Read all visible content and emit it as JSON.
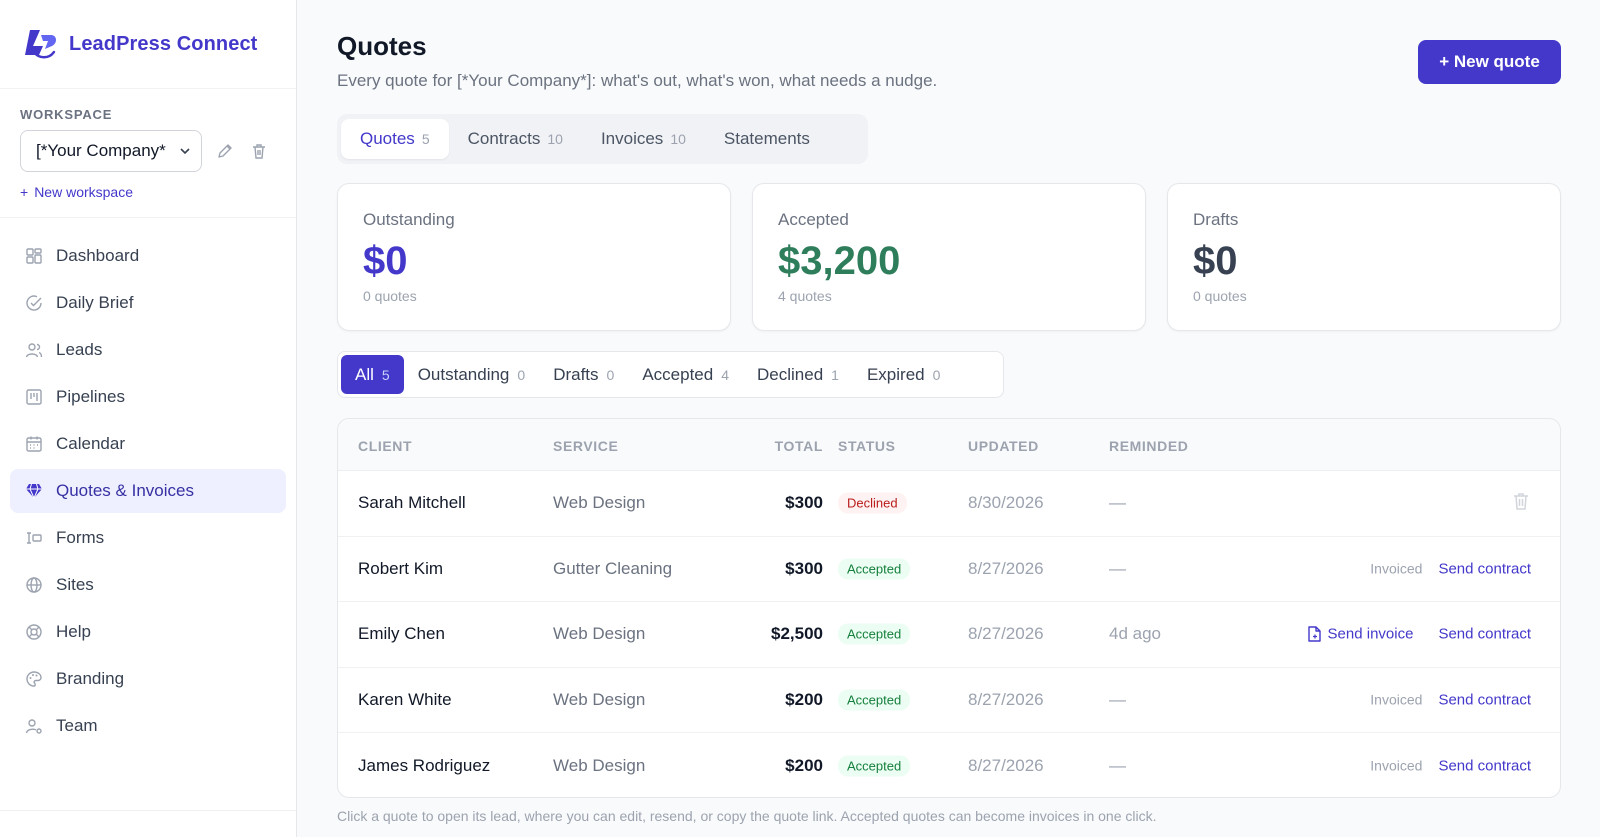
{
  "brand": {
    "name": "LeadPress Connect",
    "logo_icon": "leadpress-logo-icon"
  },
  "workspace": {
    "label": "WORKSPACE",
    "selected": "[*Your Company*",
    "new_label": "New workspace"
  },
  "nav": {
    "items": [
      {
        "label": "Dashboard",
        "icon": "grid-icon"
      },
      {
        "label": "Daily Brief",
        "icon": "check-circle-icon"
      },
      {
        "label": "Leads",
        "icon": "users-icon"
      },
      {
        "label": "Pipelines",
        "icon": "kanban-icon"
      },
      {
        "label": "Calendar",
        "icon": "calendar-icon"
      },
      {
        "label": "Quotes & Invoices",
        "icon": "gem-icon",
        "active": true
      },
      {
        "label": "Forms",
        "icon": "form-icon"
      },
      {
        "label": "Sites",
        "icon": "globe-icon"
      },
      {
        "label": "Help",
        "icon": "lifebuoy-icon"
      },
      {
        "label": "Branding",
        "icon": "palette-icon"
      },
      {
        "label": "Team",
        "icon": "user-gear-icon"
      }
    ]
  },
  "header": {
    "title": "Quotes",
    "subtitle": "Every quote for [*Your Company*]: what's out, what's won, what needs a nudge.",
    "new_button": "+ New quote"
  },
  "tabs": [
    {
      "label": "Quotes",
      "count": "5",
      "active": true
    },
    {
      "label": "Contracts",
      "count": "10"
    },
    {
      "label": "Invoices",
      "count": "10"
    },
    {
      "label": "Statements",
      "count": ""
    }
  ],
  "summary": [
    {
      "label": "Outstanding",
      "value": "$0",
      "sub": "0 quotes",
      "color": "#4338ca"
    },
    {
      "label": "Accepted",
      "value": "$3,200",
      "sub": "4 quotes",
      "color": "#2e7d5b"
    },
    {
      "label": "Drafts",
      "value": "$0",
      "sub": "0 quotes",
      "color": "#374151"
    }
  ],
  "filters": [
    {
      "label": "All",
      "count": "5",
      "active": true
    },
    {
      "label": "Outstanding",
      "count": "0"
    },
    {
      "label": "Drafts",
      "count": "0"
    },
    {
      "label": "Accepted",
      "count": "4"
    },
    {
      "label": "Declined",
      "count": "1"
    },
    {
      "label": "Expired",
      "count": "0"
    }
  ],
  "table": {
    "columns": [
      "CLIENT",
      "SERVICE",
      "TOTAL",
      "STATUS",
      "UPDATED",
      "REMINDED"
    ],
    "rows": [
      {
        "client": "Sarah Mitchell",
        "service": "Web Design",
        "total": "$300",
        "status": "Declined",
        "updated": "8/30/2026",
        "reminded": "—",
        "invoiced": "",
        "send_invoice": "",
        "send_contract": ""
      },
      {
        "client": "Robert Kim",
        "service": "Gutter Cleaning",
        "total": "$300",
        "status": "Accepted",
        "updated": "8/27/2026",
        "reminded": "—",
        "invoiced": "Invoiced",
        "send_invoice": "",
        "send_contract": "Send contract"
      },
      {
        "client": "Emily Chen",
        "service": "Web Design",
        "total": "$2,500",
        "status": "Accepted",
        "updated": "8/27/2026",
        "reminded": "4d ago",
        "invoiced": "",
        "send_invoice": "Send invoice",
        "send_contract": "Send contract"
      },
      {
        "client": "Karen White",
        "service": "Web Design",
        "total": "$200",
        "status": "Accepted",
        "updated": "8/27/2026",
        "reminded": "—",
        "invoiced": "Invoiced",
        "send_invoice": "",
        "send_contract": "Send contract"
      },
      {
        "client": "James Rodriguez",
        "service": "Web Design",
        "total": "$200",
        "status": "Accepted",
        "updated": "8/27/2026",
        "reminded": "—",
        "invoiced": "Invoiced",
        "send_invoice": "",
        "send_contract": "Send contract"
      }
    ]
  },
  "footnote": "Click a quote to open its lead, where you can edit, resend, or copy the quote link. Accepted quotes can become invoices in one click."
}
